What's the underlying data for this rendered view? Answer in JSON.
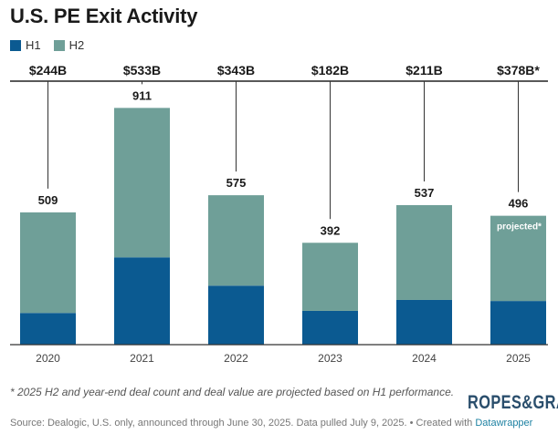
{
  "title": "U.S. PE Exit Activity",
  "colors": {
    "h1": "#0b5a91",
    "h2": "#6f9f98"
  },
  "chart_data": {
    "type": "bar",
    "stacked": true,
    "categories": [
      "2020",
      "2021",
      "2022",
      "2023",
      "2024",
      "2025"
    ],
    "series": [
      {
        "name": "H1",
        "values": [
          122,
          336,
          227,
          130,
          172,
          168
        ]
      },
      {
        "name": "H2",
        "values": [
          387,
          575,
          348,
          262,
          365,
          328
        ]
      }
    ],
    "totals": [
      "509",
      "911",
      "575",
      "392",
      "537",
      "496"
    ],
    "deal_values": [
      "$244B",
      "$533B",
      "$343B",
      "$182B",
      "$211B",
      "$378B*"
    ],
    "annotations": [
      {
        "category": "2025",
        "text": "projected*"
      }
    ],
    "ylim": [
      0,
      1000
    ],
    "legend_position": "top-left",
    "grid": false
  },
  "footnote": "* 2025 H2 and year-end deal count and deal value are projected based on H1 performance.",
  "source": {
    "text": "Source: Dealogic, U.S. only, announced through June 30, 2025. Data pulled July 9, 2025. • Created with ",
    "link": "Datawrapper"
  },
  "logo_text": "ROPES&GRAY"
}
